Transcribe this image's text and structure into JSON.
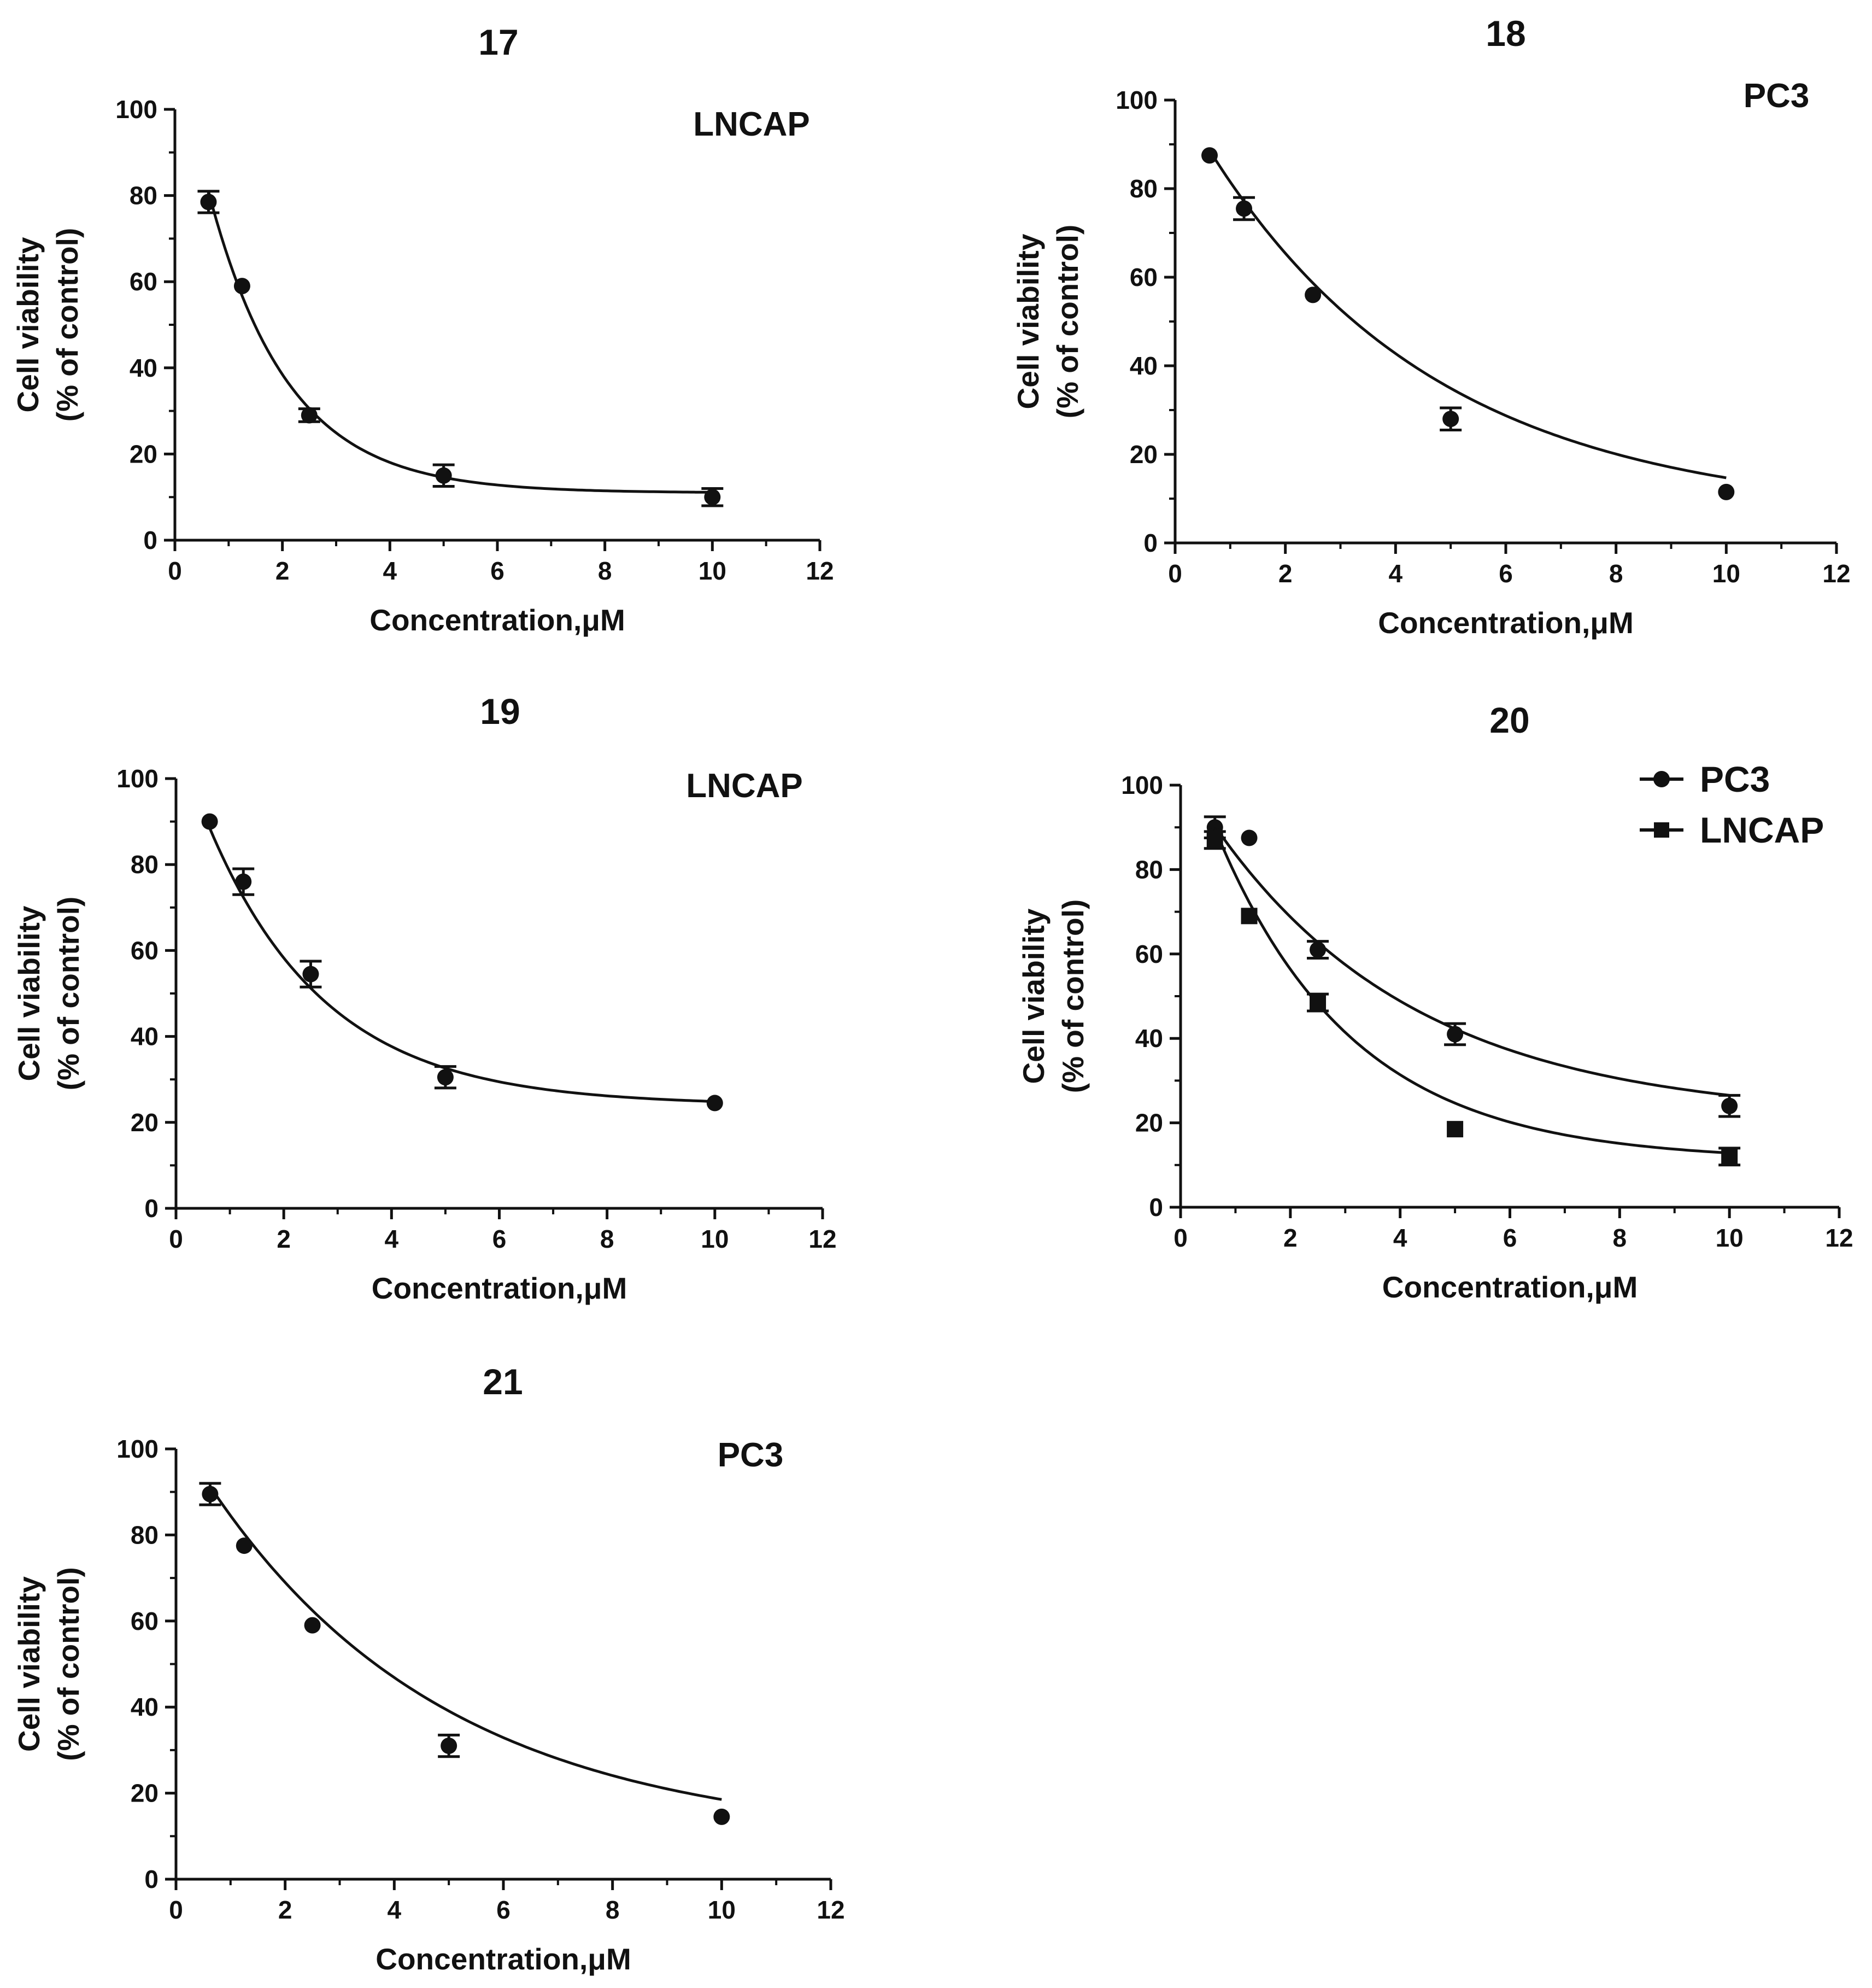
{
  "colors": {
    "ink": "#111111",
    "background": "#ffffff"
  },
  "legend": {
    "entries": [
      {
        "label": "PC3",
        "marker": "circle"
      },
      {
        "label": "LNCAP",
        "marker": "square"
      }
    ]
  },
  "chart_data": [
    {
      "type": "scatter",
      "title": "17",
      "cell_line_label": "LNCAP",
      "xlabel": "Concentration,μM",
      "ylabel": [
        "Cell viability",
        "(% of control)"
      ],
      "xlim": [
        0,
        12
      ],
      "ylim": [
        0,
        100
      ],
      "xticks": [
        "0",
        "2",
        "4",
        "6",
        "8",
        "10",
        "12"
      ],
      "yticks": [
        "0",
        "20",
        "40",
        "60",
        "80",
        "100"
      ],
      "grid": false,
      "series": [
        {
          "name": "LNCAP",
          "marker": "circle",
          "x": [
            0.625,
            1.25,
            2.5,
            5,
            10
          ],
          "y": [
            78.5,
            59,
            29,
            15,
            10
          ],
          "err": [
            2.5,
            0,
            1.5,
            2.5,
            2
          ],
          "fit": {
            "top": 118,
            "bottom": 11,
            "k": 0.68
          }
        }
      ]
    },
    {
      "type": "scatter",
      "title": "18",
      "cell_line_label": "PC3",
      "xlabel": "Concentration,μM",
      "ylabel": [
        "Cell viability",
        "(% of control)"
      ],
      "xlim": [
        0,
        12
      ],
      "ylim": [
        0,
        100
      ],
      "xticks": [
        "0",
        "2",
        "4",
        "6",
        "8",
        "10",
        "12"
      ],
      "yticks": [
        "0",
        "20",
        "40",
        "60",
        "80",
        "100"
      ],
      "grid": false,
      "series": [
        {
          "name": "PC3",
          "marker": "circle",
          "x": [
            0.625,
            1.25,
            2.5,
            5,
            10
          ],
          "y": [
            87.5,
            75.5,
            56,
            28,
            11.5
          ],
          "err": [
            0,
            2.5,
            0,
            2.5,
            0
          ],
          "fit": {
            "top": 102,
            "bottom": 6,
            "k": 0.24
          }
        }
      ]
    },
    {
      "type": "scatter",
      "title": "19",
      "cell_line_label": "LNCAP",
      "xlabel": "Concentration,μM",
      "ylabel": [
        "Cell viability",
        "(% of control)"
      ],
      "xlim": [
        0,
        12
      ],
      "ylim": [
        0,
        100
      ],
      "xticks": [
        "0",
        "2",
        "4",
        "6",
        "8",
        "10",
        "12"
      ],
      "yticks": [
        "0",
        "20",
        "40",
        "60",
        "80",
        "100"
      ],
      "grid": false,
      "series": [
        {
          "name": "LNCAP",
          "marker": "circle",
          "x": [
            0.625,
            1.25,
            2.5,
            5,
            10
          ],
          "y": [
            90,
            76,
            54.5,
            30.5,
            24.5
          ],
          "err": [
            0,
            3,
            3,
            2.5,
            0
          ],
          "fit": {
            "top": 110,
            "bottom": 24,
            "k": 0.46
          }
        }
      ]
    },
    {
      "type": "scatter",
      "title": "20",
      "cell_line_label": "",
      "xlabel": "Concentration,μM",
      "ylabel": [
        "Cell viability",
        "(% of control)"
      ],
      "xlim": [
        0,
        12
      ],
      "ylim": [
        0,
        100
      ],
      "xticks": [
        "0",
        "2",
        "4",
        "6",
        "8",
        "10",
        "12"
      ],
      "yticks": [
        "0",
        "20",
        "40",
        "60",
        "80",
        "100"
      ],
      "grid": false,
      "series": [
        {
          "name": "PC3",
          "marker": "circle",
          "x": [
            0.625,
            0.625,
            1.25,
            2.5,
            5,
            10
          ],
          "y": [
            90,
            88,
            87.5,
            61,
            41,
            24
          ],
          "err": [
            2.5,
            0,
            0,
            2,
            2.5,
            2.5
          ],
          "fit": {
            "top": 103,
            "bottom": 21,
            "k": 0.27
          }
        },
        {
          "name": "LNCAP",
          "marker": "square",
          "x": [
            0.625,
            1.25,
            2.5,
            5,
            10
          ],
          "y": [
            87,
            69,
            48.5,
            18.5,
            12
          ],
          "err": [
            2,
            0,
            2,
            0,
            2
          ],
          "fit": {
            "top": 112,
            "bottom": 11,
            "k": 0.4
          }
        }
      ]
    },
    {
      "type": "scatter",
      "title": "21",
      "cell_line_label": "PC3",
      "xlabel": "Concentration,μM",
      "ylabel": [
        "Cell viability",
        "(% of control)"
      ],
      "xlim": [
        0,
        12
      ],
      "ylim": [
        0,
        100
      ],
      "xticks": [
        "0",
        "2",
        "4",
        "6",
        "8",
        "10",
        "12"
      ],
      "yticks": [
        "0",
        "20",
        "40",
        "60",
        "80",
        "100"
      ],
      "grid": false,
      "series": [
        {
          "name": "PC3",
          "marker": "circle",
          "x": [
            0.625,
            1.25,
            2.5,
            5,
            10
          ],
          "y": [
            89.5,
            77.5,
            59,
            31,
            14.5
          ],
          "err": [
            2.5,
            0,
            0,
            2.5,
            0
          ],
          "fit": {
            "top": 104,
            "bottom": 9,
            "k": 0.23
          }
        }
      ]
    }
  ]
}
